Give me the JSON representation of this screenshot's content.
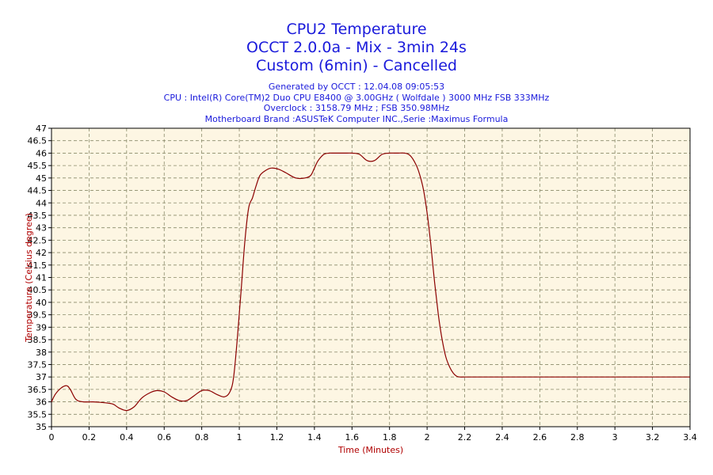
{
  "titles": [
    "CPU2 Temperature",
    "OCCT 2.0.0a - Mix - 3min 24s",
    "Custom (6min) - Cancelled"
  ],
  "subtitles": [
    "Generated by OCCT : 12.04.08 09:05:53",
    "CPU : Intel(R) Core(TM)2 Duo CPU E8400 @ 3.00GHz ( Wolfdale ) 3000 MHz FSB 333MHz",
    "Overclock : 3158.79 MHz ; FSB 350.98MHz",
    "Motherboard Brand :ASUSTeK Computer INC.,Serie :Maximus Formula"
  ],
  "colors": {
    "title": "#1a1adb",
    "plot_background": "#fdf6e3",
    "line": "#8b0000",
    "axis_label": "#b00000",
    "grid": "#8a8a6a"
  },
  "chart_data": {
    "type": "line",
    "title": "CPU2 Temperature",
    "xlabel": "Time (Minutes)",
    "ylabel": "Temperature (Celsius degree)",
    "xlim": [
      0,
      3.4
    ],
    "ylim": [
      35,
      47
    ],
    "x_ticks": [
      "0",
      "0.2",
      "0.4",
      "0.6",
      "0.8",
      "1",
      "1.2",
      "1.4",
      "1.6",
      "1.8",
      "2",
      "2.2",
      "2.4",
      "2.6",
      "2.8",
      "3",
      "3.2",
      "3.4"
    ],
    "y_ticks": [
      "35",
      "35.5",
      "36",
      "36.5",
      "37",
      "37.5",
      "38",
      "38.5",
      "39",
      "39.5",
      "40",
      "40.5",
      "41",
      "41.5",
      "42",
      "42.5",
      "43",
      "43.5",
      "44",
      "44.5",
      "45",
      "45.5",
      "46",
      "46.5",
      "47"
    ],
    "grid": true,
    "series": [
      {
        "x": [
          0,
          0.02,
          0.05,
          0.08,
          0.1,
          0.13,
          0.17,
          0.22,
          0.26,
          0.3,
          0.33,
          0.36,
          0.4,
          0.44,
          0.48,
          0.52,
          0.56,
          0.6,
          0.64,
          0.68,
          0.72,
          0.76,
          0.8,
          0.84,
          0.88,
          0.92,
          0.95,
          0.97,
          0.99,
          1.01,
          1.03,
          1.05,
          1.07,
          1.09,
          1.11,
          1.14,
          1.17,
          1.21,
          1.25,
          1.3,
          1.35,
          1.38,
          1.4,
          1.42,
          1.45,
          1.48,
          1.5,
          1.53,
          1.56,
          1.6,
          1.64,
          1.68,
          1.72,
          1.76,
          1.8,
          1.84,
          1.88,
          1.91,
          1.94,
          1.96,
          1.98,
          2.0,
          2.02,
          2.04,
          2.06,
          2.08,
          2.1,
          2.12,
          2.14,
          2.16,
          2.18,
          2.2,
          2.4,
          2.8,
          3.0,
          3.4
        ],
        "y": [
          36.0,
          36.3,
          36.55,
          36.65,
          36.5,
          36.1,
          36.0,
          36.0,
          35.98,
          35.95,
          35.9,
          35.75,
          35.65,
          35.8,
          36.15,
          36.35,
          36.45,
          36.4,
          36.2,
          36.05,
          36.05,
          36.25,
          36.45,
          36.45,
          36.3,
          36.2,
          36.4,
          37.0,
          38.6,
          40.5,
          42.5,
          43.8,
          44.2,
          44.7,
          45.1,
          45.3,
          45.4,
          45.35,
          45.2,
          45.0,
          45.0,
          45.1,
          45.4,
          45.7,
          45.95,
          46.0,
          46.0,
          46.0,
          46.0,
          46.0,
          45.95,
          45.7,
          45.7,
          45.95,
          46.0,
          46.0,
          46.0,
          45.9,
          45.55,
          45.15,
          44.55,
          43.6,
          42.3,
          40.8,
          39.5,
          38.5,
          37.8,
          37.4,
          37.15,
          37.02,
          37.0,
          37.0,
          37.0,
          37.0,
          37.0,
          37.0
        ]
      }
    ]
  }
}
